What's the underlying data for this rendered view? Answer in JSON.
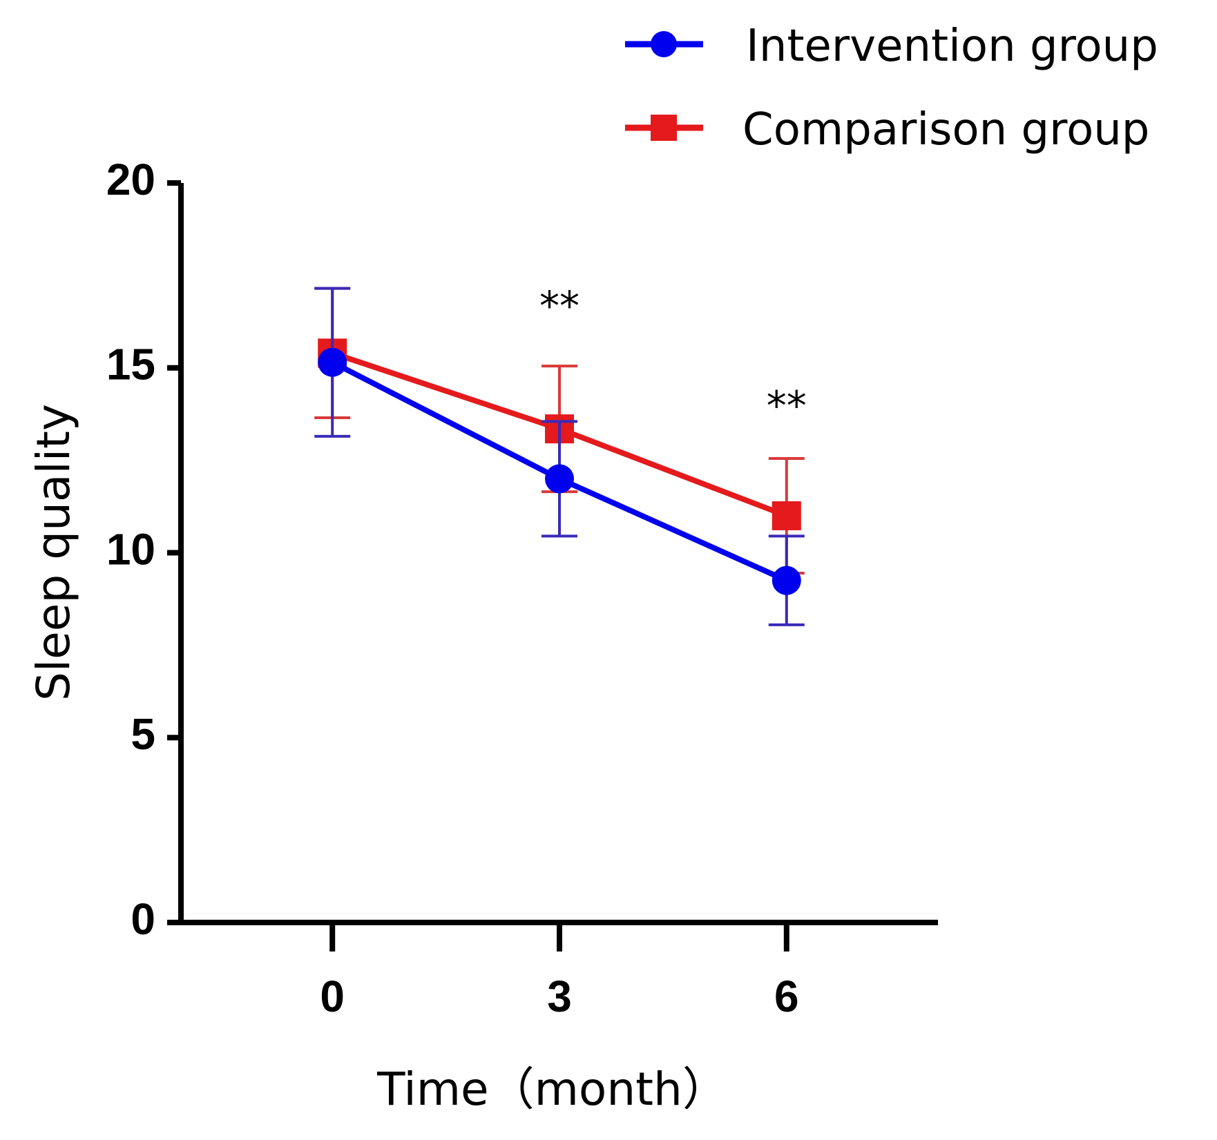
{
  "chart_data": {
    "type": "line",
    "title": "",
    "xlabel": "Time（month）",
    "ylabel": "Sleep quality",
    "categories": [
      "0",
      "3",
      "6"
    ],
    "x": [
      0,
      3,
      6
    ],
    "xlim": [
      -2,
      8
    ],
    "ylim": [
      0,
      20
    ],
    "yticks": [
      "0",
      "5",
      "10",
      "15",
      "20"
    ],
    "ytick_values": [
      0,
      5,
      10,
      15,
      20
    ],
    "grid": false,
    "legend_position": "top-right",
    "series": [
      {
        "name": "Intervention group",
        "marker": "circle",
        "color": "#0000ee",
        "errorbar_color": "#3a2ab8",
        "values": [
          15.15,
          12.0,
          9.25
        ],
        "error": [
          2.0,
          1.55,
          1.2
        ]
      },
      {
        "name": "Comparison group",
        "marker": "square",
        "color": "#e41a1c",
        "errorbar_color": "#d83a3a",
        "values": [
          15.4,
          13.35,
          11.0
        ],
        "error": [
          1.75,
          1.7,
          1.55
        ]
      }
    ],
    "annotations": [
      {
        "text": "**",
        "x": 3,
        "y": 16.3
      },
      {
        "text": "**",
        "x": 6,
        "y": 13.6
      }
    ]
  }
}
